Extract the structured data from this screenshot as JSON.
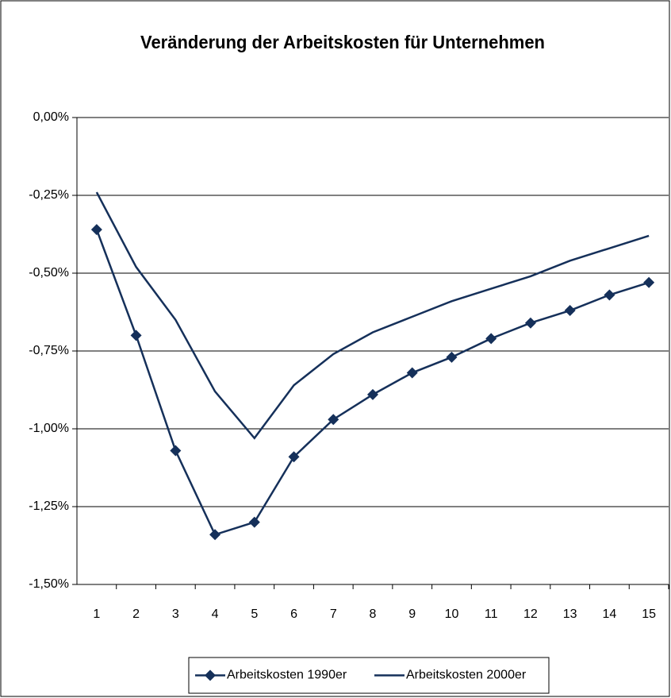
{
  "chart_data": {
    "type": "line",
    "title": "Veränderung der Arbeitskosten für Unternehmen",
    "categories": [
      1,
      2,
      3,
      4,
      5,
      6,
      7,
      8,
      9,
      10,
      11,
      12,
      13,
      14,
      15
    ],
    "series": [
      {
        "name": "Arbeitskosten 1990er",
        "color": "#15305a",
        "marker": "diamond",
        "values": [
          -0.36,
          -0.7,
          -1.07,
          -1.34,
          -1.3,
          -1.09,
          -0.97,
          -0.89,
          -0.82,
          -0.77,
          -0.71,
          -0.66,
          -0.62,
          -0.57,
          -0.53
        ]
      },
      {
        "name": "Arbeitskosten 2000er",
        "color": "#15305a",
        "values": [
          -0.24,
          -0.48,
          -0.65,
          -0.88,
          -1.03,
          -0.86,
          -0.76,
          -0.69,
          -0.64,
          -0.59,
          -0.55,
          -0.51,
          -0.46,
          -0.42,
          -0.38
        ]
      }
    ],
    "ylim": [
      -1.5,
      0
    ],
    "yticks": [
      {
        "value": 0,
        "label": "0,00%"
      },
      {
        "value": -0.25,
        "label": "-0,25%"
      },
      {
        "value": -0.5,
        "label": "-0,50%"
      },
      {
        "value": -0.75,
        "label": "-0,75%"
      },
      {
        "value": -1,
        "label": "-1,00%"
      },
      {
        "value": -1.25,
        "label": "-1,25%"
      },
      {
        "value": -1.5,
        "label": "-1,50%"
      }
    ],
    "grid": true,
    "legend": "bottom"
  }
}
